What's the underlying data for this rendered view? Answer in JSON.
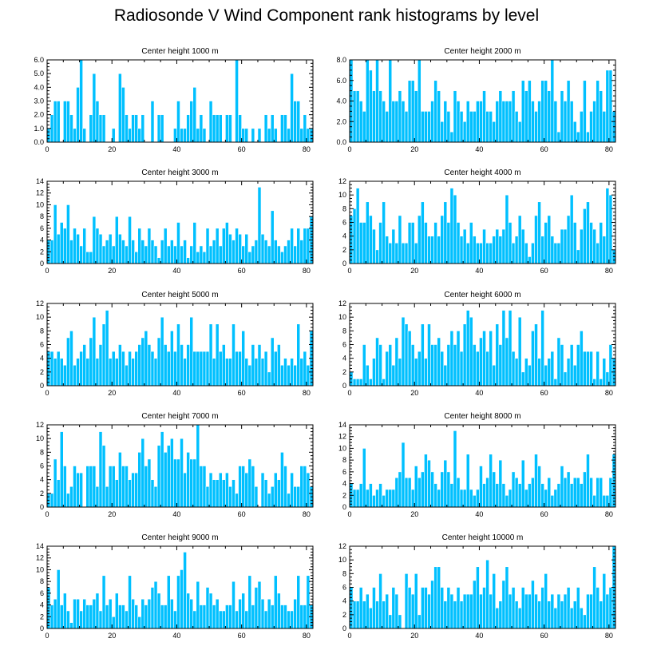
{
  "title": "Radiosonde V Wind Component rank histograms by level",
  "colors": {
    "bar": "#00c0ff",
    "bar_edge": "#ffffff",
    "axis": "#000000"
  },
  "chart_data": [
    {
      "type": "bar",
      "title": "Center height 1000 m",
      "xlim": [
        0,
        82
      ],
      "ylim": [
        0,
        6
      ],
      "xticks": [
        0,
        20,
        40,
        60,
        80
      ],
      "yticks": [
        0,
        1,
        2,
        3,
        4,
        5,
        6
      ],
      "ytick_labels": [
        "0.0",
        "1.0",
        "2.0",
        "3.0",
        "4.0",
        "5.0",
        "6.0"
      ],
      "values": [
        1,
        2,
        3,
        3,
        0,
        3,
        3,
        2,
        1,
        4,
        6,
        1,
        0,
        2,
        5,
        3,
        2,
        2,
        0,
        0,
        1,
        0,
        5,
        4,
        2,
        1,
        2,
        2,
        1,
        2,
        0,
        0,
        3,
        0,
        2,
        2,
        0,
        0,
        0,
        1,
        3,
        1,
        1,
        2,
        3,
        4,
        1,
        2,
        1,
        0,
        3,
        2,
        2,
        2,
        0,
        2,
        2,
        0,
        6,
        2,
        1,
        1,
        0,
        1,
        0,
        1,
        0,
        2,
        1,
        2,
        1,
        0,
        2,
        2,
        1,
        5,
        3,
        3,
        1,
        2,
        1,
        1
      ]
    },
    {
      "type": "bar",
      "title": "Center height 2000 m",
      "xlim": [
        0,
        82
      ],
      "ylim": [
        0,
        8
      ],
      "xticks": [
        0,
        20,
        40,
        60,
        80
      ],
      "yticks": [
        0,
        2,
        4,
        6,
        8
      ],
      "ytick_labels": [
        "0.0",
        "2.0",
        "4.0",
        "6.0",
        "8.0"
      ],
      "values": [
        8,
        5,
        5,
        4,
        3,
        8,
        7,
        5,
        8,
        5,
        4,
        3,
        8,
        4,
        4,
        5,
        4,
        3,
        6,
        6,
        5,
        8,
        3,
        3,
        3,
        4,
        6,
        5,
        2,
        4,
        3,
        1,
        5,
        4,
        3,
        2,
        4,
        3,
        3,
        4,
        4,
        5,
        3,
        3,
        2,
        4,
        5,
        4,
        4,
        4,
        5,
        3,
        2,
        6,
        5,
        6,
        4,
        3,
        4,
        6,
        6,
        5,
        8,
        4,
        1,
        5,
        4,
        6,
        4,
        2,
        1,
        3,
        6,
        1,
        3,
        4,
        6,
        5,
        3,
        7,
        7,
        3
      ]
    },
    {
      "type": "bar",
      "title": "Center height 3000 m",
      "xlim": [
        0,
        82
      ],
      "ylim": [
        0,
        14
      ],
      "xticks": [
        0,
        20,
        40,
        60,
        80
      ],
      "yticks": [
        0,
        2,
        4,
        6,
        8,
        10,
        12,
        14
      ],
      "ytick_labels": [
        "0",
        "2",
        "4",
        "6",
        "8",
        "10",
        "12",
        "14"
      ],
      "values": [
        4,
        4,
        10,
        5,
        7,
        6,
        10,
        4,
        6,
        5,
        3,
        6,
        2,
        2,
        8,
        6,
        5,
        3,
        4,
        5,
        3,
        8,
        5,
        4,
        3,
        8,
        4,
        2,
        6,
        4,
        3,
        6,
        4,
        3,
        1,
        4,
        6,
        3,
        4,
        3,
        7,
        3,
        4,
        1,
        3,
        7,
        2,
        3,
        2,
        6,
        3,
        4,
        6,
        3,
        6,
        7,
        5,
        4,
        6,
        5,
        3,
        5,
        2,
        3,
        4,
        13,
        5,
        4,
        3,
        9,
        4,
        3,
        2,
        3,
        4,
        6,
        3,
        6,
        4,
        6,
        6,
        8
      ]
    },
    {
      "type": "bar",
      "title": "Center height 4000 m",
      "xlim": [
        0,
        82
      ],
      "ylim": [
        0,
        12
      ],
      "xticks": [
        0,
        20,
        40,
        60,
        80
      ],
      "yticks": [
        0,
        2,
        4,
        6,
        8,
        10,
        12
      ],
      "ytick_labels": [
        "0",
        "2",
        "4",
        "6",
        "8",
        "10",
        "12"
      ],
      "values": [
        7,
        8,
        11,
        6,
        6,
        9,
        7,
        5,
        2,
        6,
        9,
        4,
        3,
        5,
        3,
        7,
        3,
        3,
        6,
        6,
        3,
        7,
        9,
        6,
        4,
        4,
        6,
        4,
        7,
        9,
        6,
        11,
        10,
        6,
        4,
        5,
        3,
        6,
        4,
        3,
        3,
        5,
        3,
        3,
        4,
        5,
        4,
        5,
        10,
        6,
        3,
        4,
        7,
        5,
        3,
        1,
        3,
        7,
        9,
        4,
        6,
        7,
        4,
        3,
        3,
        5,
        5,
        7,
        10,
        6,
        2,
        5,
        8,
        9,
        6,
        5,
        3,
        6,
        4,
        11,
        10,
        2
      ]
    },
    {
      "type": "bar",
      "title": "Center height 5000 m",
      "xlim": [
        0,
        82
      ],
      "ylim": [
        0,
        12
      ],
      "xticks": [
        0,
        20,
        40,
        60,
        80
      ],
      "yticks": [
        0,
        2,
        4,
        6,
        8,
        10,
        12
      ],
      "ytick_labels": [
        "0",
        "2",
        "4",
        "6",
        "8",
        "10",
        "12"
      ],
      "values": [
        5,
        5,
        4,
        5,
        4,
        3,
        7,
        8,
        3,
        4,
        5,
        6,
        4,
        7,
        10,
        4,
        6,
        9,
        11,
        4,
        5,
        4,
        6,
        5,
        3,
        5,
        4,
        5,
        6,
        7,
        8,
        6,
        5,
        4,
        7,
        10,
        6,
        5,
        8,
        5,
        9,
        6,
        4,
        6,
        10,
        5,
        5,
        5,
        5,
        5,
        9,
        4,
        9,
        5,
        6,
        4,
        4,
        9,
        5,
        5,
        8,
        4,
        3,
        6,
        4,
        6,
        4,
        5,
        2,
        7,
        5,
        6,
        3,
        4,
        3,
        4,
        3,
        9,
        4,
        5,
        3,
        8
      ]
    },
    {
      "type": "bar",
      "title": "Center height 6000 m",
      "xlim": [
        0,
        82
      ],
      "ylim": [
        0,
        12
      ],
      "xticks": [
        0,
        20,
        40,
        60,
        80
      ],
      "yticks": [
        0,
        2,
        4,
        6,
        8,
        10,
        12
      ],
      "ytick_labels": [
        "0",
        "2",
        "4",
        "6",
        "8",
        "10",
        "12"
      ],
      "values": [
        2,
        1,
        1,
        1,
        6,
        3,
        1,
        4,
        7,
        6,
        1,
        5,
        6,
        3,
        7,
        4,
        10,
        9,
        8,
        6,
        4,
        5,
        9,
        4,
        9,
        6,
        6,
        7,
        5,
        3,
        6,
        8,
        6,
        8,
        5,
        9,
        11,
        10,
        6,
        5,
        7,
        8,
        5,
        8,
        3,
        9,
        6,
        11,
        7,
        11,
        5,
        4,
        10,
        2,
        4,
        3,
        8,
        9,
        4,
        11,
        3,
        4,
        5,
        1,
        7,
        6,
        2,
        4,
        6,
        3,
        6,
        8,
        5,
        5,
        5,
        1,
        5,
        1,
        4,
        2,
        6,
        4
      ]
    },
    {
      "type": "bar",
      "title": "Center height 7000 m",
      "xlim": [
        0,
        82
      ],
      "ylim": [
        0,
        12
      ],
      "xticks": [
        0,
        20,
        40,
        60,
        80
      ],
      "yticks": [
        0,
        2,
        4,
        6,
        8,
        10,
        12
      ],
      "ytick_labels": [
        "0",
        "2",
        "4",
        "6",
        "8",
        "10",
        "12"
      ],
      "values": [
        2,
        2,
        7,
        4,
        11,
        6,
        2,
        3,
        6,
        5,
        5,
        0,
        6,
        6,
        6,
        3,
        11,
        9,
        3,
        6,
        6,
        4,
        8,
        6,
        6,
        4,
        5,
        5,
        8,
        10,
        6,
        7,
        4,
        3,
        9,
        11,
        8,
        9,
        10,
        7,
        7,
        10,
        5,
        8,
        7,
        7,
        12,
        6,
        6,
        3,
        5,
        4,
        4,
        5,
        4,
        5,
        3,
        4,
        2,
        6,
        6,
        5,
        7,
        6,
        3,
        0,
        5,
        4,
        2,
        3,
        5,
        4,
        8,
        6,
        2,
        5,
        3,
        3,
        6,
        6,
        5,
        3
      ]
    },
    {
      "type": "bar",
      "title": "Center height 8000 m",
      "xlim": [
        0,
        82
      ],
      "ylim": [
        0,
        14
      ],
      "xticks": [
        0,
        20,
        40,
        60,
        80
      ],
      "yticks": [
        0,
        2,
        4,
        6,
        8,
        10,
        12,
        14
      ],
      "ytick_labels": [
        "0",
        "2",
        "4",
        "6",
        "8",
        "10",
        "12",
        "14"
      ],
      "values": [
        4,
        3,
        3,
        4,
        10,
        3,
        4,
        2,
        3,
        4,
        2,
        3,
        3,
        3,
        5,
        6,
        11,
        5,
        5,
        3,
        7,
        5,
        6,
        9,
        8,
        6,
        4,
        3,
        6,
        8,
        6,
        4,
        13,
        5,
        3,
        3,
        9,
        3,
        2,
        3,
        7,
        4,
        5,
        9,
        6,
        4,
        8,
        4,
        2,
        3,
        6,
        5,
        4,
        8,
        3,
        4,
        5,
        9,
        7,
        4,
        3,
        5,
        2,
        3,
        4,
        7,
        5,
        6,
        4,
        5,
        5,
        4,
        6,
        9,
        5,
        2,
        5,
        5,
        2,
        2,
        5,
        9
      ]
    },
    {
      "type": "bar",
      "title": "Center height 9000 m",
      "xlim": [
        0,
        82
      ],
      "ylim": [
        0,
        14
      ],
      "xticks": [
        0,
        20,
        40,
        60,
        80
      ],
      "yticks": [
        0,
        2,
        4,
        6,
        8,
        10,
        12,
        14
      ],
      "ytick_labels": [
        "0",
        "2",
        "4",
        "6",
        "8",
        "10",
        "12",
        "14"
      ],
      "values": [
        7,
        4,
        5,
        10,
        4,
        6,
        3,
        1,
        5,
        5,
        3,
        5,
        4,
        4,
        5,
        6,
        3,
        9,
        4,
        5,
        2,
        6,
        4,
        4,
        3,
        9,
        5,
        4,
        2,
        5,
        4,
        5,
        7,
        8,
        6,
        4,
        4,
        9,
        5,
        3,
        9,
        10,
        13,
        6,
        5,
        3,
        8,
        4,
        4,
        7,
        6,
        4,
        5,
        3,
        3,
        4,
        4,
        8,
        3,
        5,
        6,
        3,
        9,
        4,
        7,
        8,
        5,
        3,
        5,
        4,
        9,
        6,
        4,
        4,
        3,
        3,
        5,
        9,
        4,
        4,
        9,
        4
      ]
    },
    {
      "type": "bar",
      "title": "Center height 10000 m",
      "xlim": [
        0,
        82
      ],
      "ylim": [
        0,
        12
      ],
      "xticks": [
        0,
        20,
        40,
        60,
        80
      ],
      "yticks": [
        0,
        2,
        4,
        6,
        8,
        10,
        12
      ],
      "ytick_labels": [
        "0",
        "2",
        "4",
        "6",
        "8",
        "10",
        "12"
      ],
      "values": [
        6,
        4,
        4,
        6,
        4,
        5,
        3,
        6,
        4,
        8,
        4,
        5,
        2,
        6,
        5,
        2,
        0,
        8,
        6,
        5,
        8,
        2,
        6,
        6,
        5,
        7,
        9,
        9,
        6,
        4,
        6,
        5,
        4,
        6,
        4,
        5,
        5,
        5,
        7,
        9,
        5,
        6,
        10,
        5,
        8,
        3,
        4,
        7,
        9,
        5,
        6,
        4,
        3,
        6,
        5,
        5,
        7,
        5,
        4,
        6,
        8,
        4,
        5,
        3,
        5,
        4,
        5,
        6,
        3,
        4,
        6,
        3,
        2,
        5,
        5,
        9,
        6,
        4,
        8,
        5,
        6,
        12
      ]
    }
  ]
}
